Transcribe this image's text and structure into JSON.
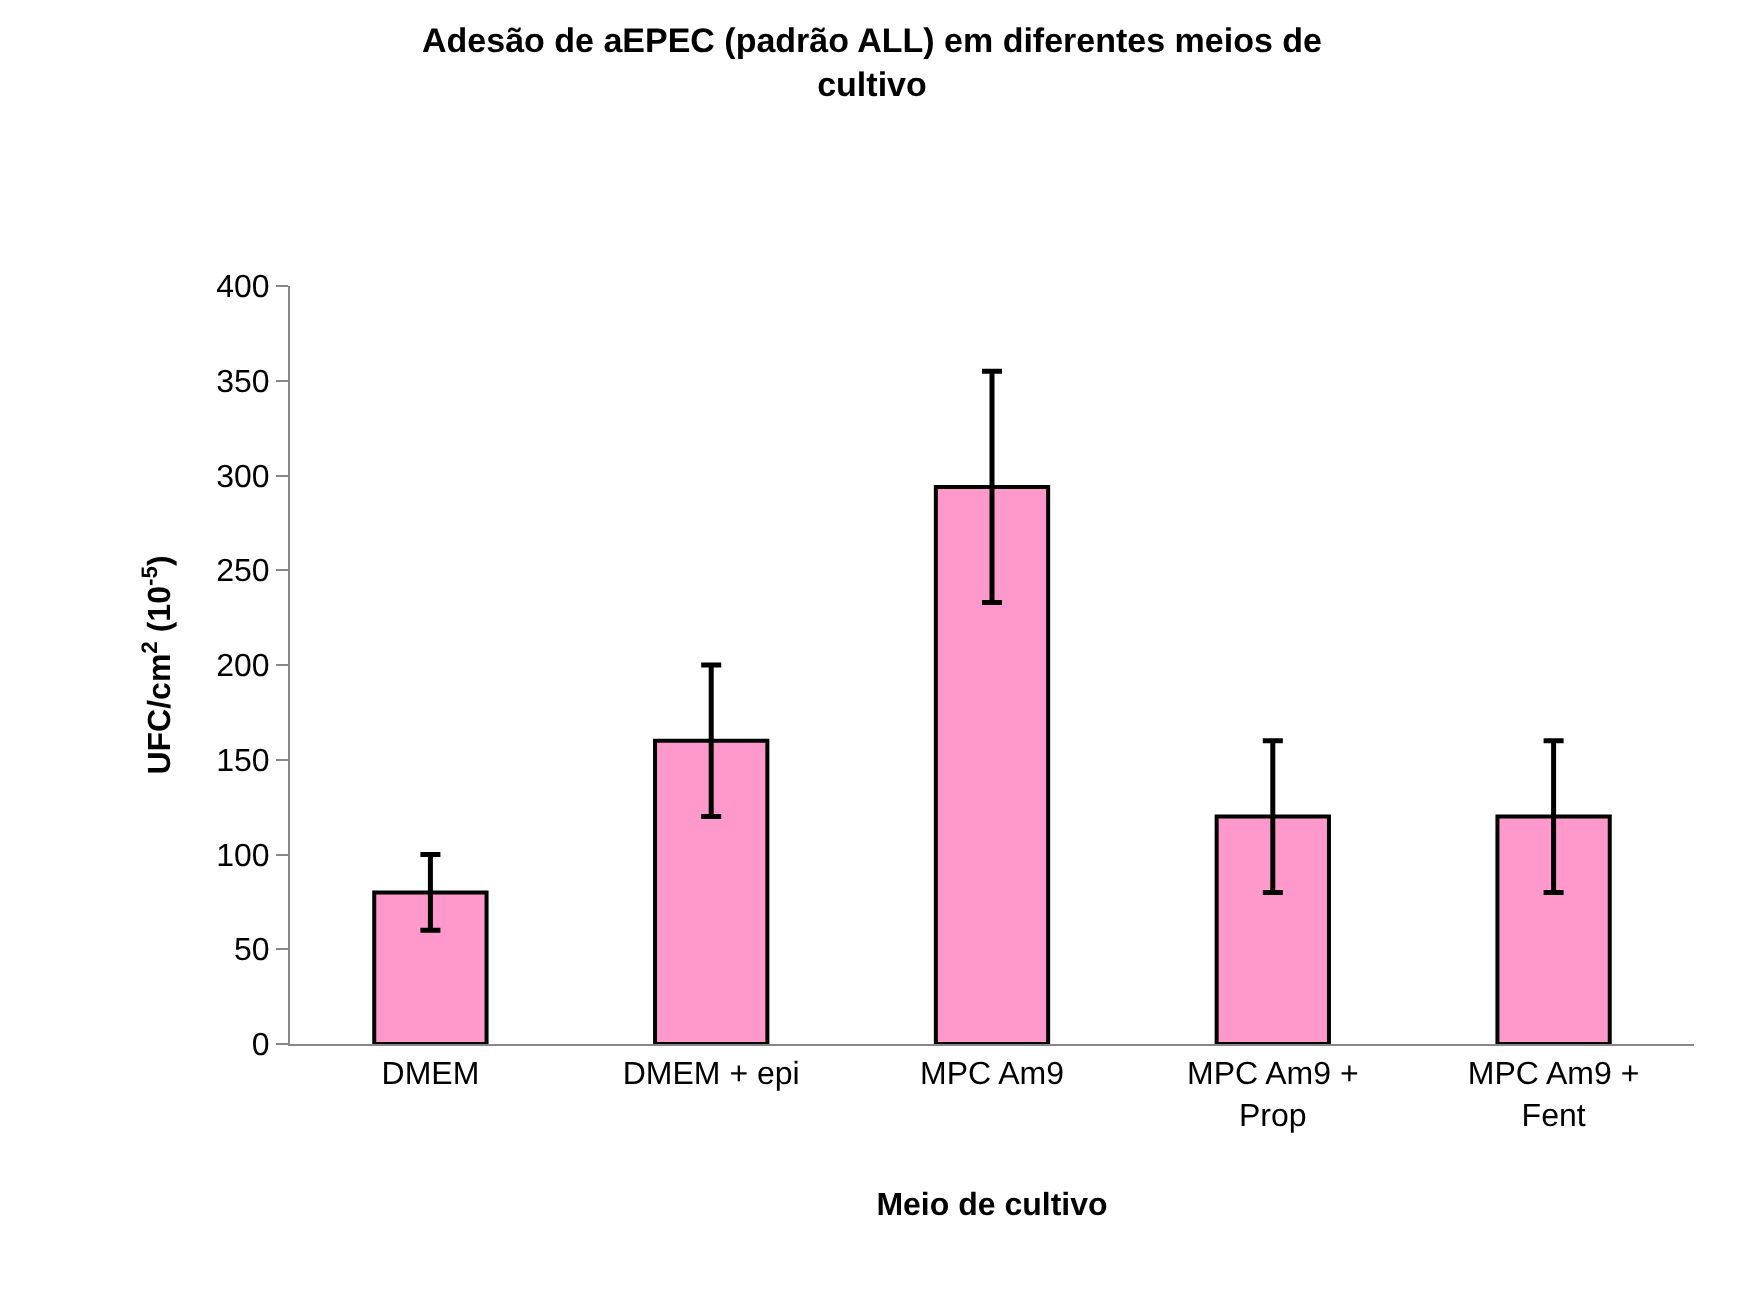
{
  "chart_data": {
    "type": "bar",
    "title": "Adesão de aEPEC (padrão ALL) em diferentes meios de cultivo",
    "xlabel": "Meio de cultivo",
    "ylabel": "UFC/cm$^{2}$ (10$^{-5}$)",
    "categories": [
      "DMEM",
      "DMEM + epi",
      "MPC Am9",
      "MPC Am9 + Prop",
      "MPC Am9 + Fent"
    ],
    "values": [
      80,
      160,
      294,
      120,
      120
    ],
    "errors": [
      20,
      40,
      61,
      40,
      40
    ],
    "color": "#ff99cc",
    "ylim": [
      0,
      400
    ],
    "yticks": [
      0,
      50,
      100,
      150,
      200,
      250,
      300,
      350,
      400
    ]
  }
}
